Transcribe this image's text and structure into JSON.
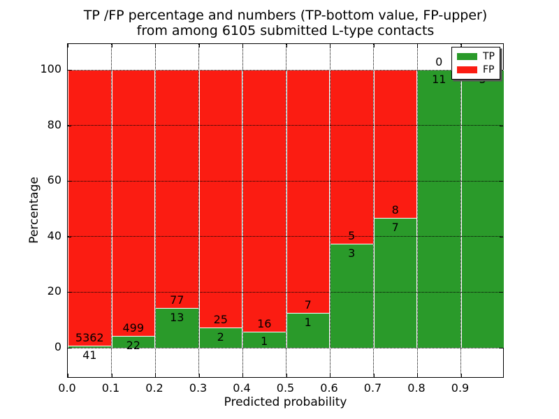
{
  "figure": {
    "title_line1": "TP /FP percentage and numbers (TP-bottom value, FP-upper)",
    "title_line2": "from among 6105 submitted L-type contacts"
  },
  "axes": {
    "xlabel": "Predicted probability",
    "ylabel": "Percentage",
    "x_tick_labels": [
      "0.0",
      "0.1",
      "0.2",
      "0.3",
      "0.4",
      "0.5",
      "0.6",
      "0.7",
      "0.8",
      "0.9"
    ],
    "y_tick_labels": [
      "0",
      "20",
      "40",
      "60",
      "80",
      "100"
    ],
    "y_tick_values": [
      0,
      20,
      40,
      60,
      80,
      100
    ],
    "grid": "dotted"
  },
  "legend": {
    "position": "upper-right",
    "items": [
      {
        "label": "TP",
        "color": "#2a9a2a"
      },
      {
        "label": "FP",
        "color": "#fb1c12"
      }
    ]
  },
  "colors": {
    "tp_green": "#2a9a2a",
    "fp_red": "#fb1c12",
    "bar_edge": "#ffffff",
    "text": "#000000",
    "background": "#ffffff"
  },
  "chart_data": {
    "type": "bar",
    "stacked": true,
    "normalized_to_percent": true,
    "title": "TP /FP percentage and numbers (TP-bottom value, FP-upper) from among 6105 submitted L-type contacts",
    "xlabel": "Predicted probability",
    "ylabel": "Percentage",
    "total_contacts": 6105,
    "bin_edges": [
      0.0,
      0.1,
      0.2,
      0.3,
      0.4,
      0.5,
      0.6,
      0.7,
      0.8,
      0.9,
      1.0
    ],
    "categories": [
      "0.0-0.1",
      "0.1-0.2",
      "0.2-0.3",
      "0.3-0.4",
      "0.4-0.5",
      "0.5-0.6",
      "0.6-0.7",
      "0.7-0.8",
      "0.8-0.9",
      "0.9-1.0"
    ],
    "series": [
      {
        "name": "TP",
        "color": "#2a9a2a",
        "counts": [
          41,
          22,
          13,
          2,
          1,
          1,
          3,
          7,
          11,
          5
        ]
      },
      {
        "name": "FP",
        "color": "#fb1c12",
        "counts": [
          5362,
          499,
          77,
          25,
          16,
          7,
          5,
          8,
          0,
          0
        ]
      }
    ],
    "tp_percent": [
      0.76,
      4.22,
      14.44,
      7.41,
      5.88,
      12.5,
      37.5,
      46.67,
      100,
      100
    ],
    "ylim_data": [
      0,
      100
    ],
    "legend_position": "upper right"
  }
}
